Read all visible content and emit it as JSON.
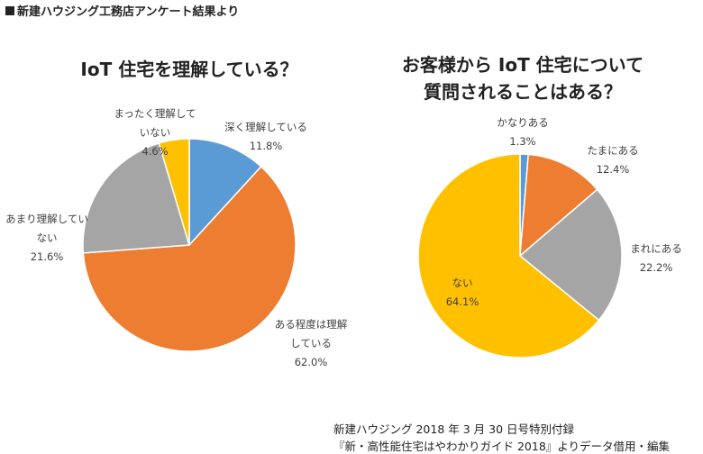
{
  "header": "新建ハウジング工務店アンケート結果より",
  "footer": {
    "line1": "新建ハウジング 2018 年 3 月 30 日号特別付録",
    "line2": "『新・高性能住宅はやわかりガイド 2018』よりデータ借用・編集"
  },
  "chart_data": [
    {
      "type": "pie",
      "title": "IoT 住宅を理解している？",
      "slices": [
        {
          "label": "深く理解している",
          "value": 11.8,
          "display": "11.8%",
          "color": "#5b9bd5"
        },
        {
          "label": "ある程度は理解している",
          "value": 62.0,
          "display": "62.0%",
          "color": "#ed7d31"
        },
        {
          "label": "あまり理解していない",
          "value": 21.6,
          "display": "21.6%",
          "color": "#a5a5a5"
        },
        {
          "label": "まったく理解していない",
          "value": 4.6,
          "display": "4.6%",
          "color": "#ffc000"
        }
      ]
    },
    {
      "type": "pie",
      "title": "お客様から IoT 住宅について質問されることはある？",
      "slices": [
        {
          "label": "かなりある",
          "value": 1.3,
          "display": "1.3%",
          "color": "#5b9bd5"
        },
        {
          "label": "たまにある",
          "value": 12.4,
          "display": "12.4%",
          "color": "#ed7d31"
        },
        {
          "label": "まれにある",
          "value": 22.2,
          "display": "22.2%",
          "color": "#a5a5a5"
        },
        {
          "label": "ない",
          "value": 64.1,
          "display": "64.1%",
          "color": "#ffc000"
        }
      ]
    }
  ]
}
